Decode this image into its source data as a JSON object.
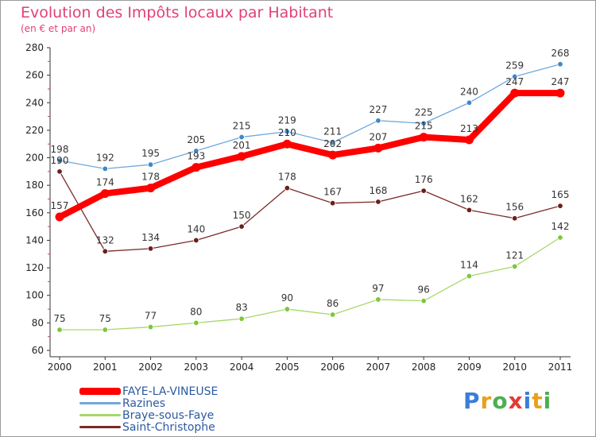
{
  "title": "Evolution des Impôts locaux par Habitant",
  "subtitle": "(en € et par an)",
  "chart_data": {
    "type": "line",
    "x": [
      "2000",
      "2001",
      "2002",
      "2003",
      "2004",
      "2005",
      "2006",
      "2007",
      "2008",
      "2009",
      "2010",
      "2011"
    ],
    "ylim": [
      60,
      280
    ],
    "yticks": [
      60,
      80,
      100,
      120,
      140,
      160,
      180,
      200,
      220,
      240,
      260,
      280
    ],
    "grid": false,
    "legend_position": "bottom-left",
    "series": [
      {
        "name": "Razines",
        "color": "#6fa8dc",
        "marker": "#3f88c8",
        "width": 1.3,
        "values": [
          198,
          192,
          195,
          205,
          215,
          219,
          211,
          227,
          225,
          240,
          259,
          268
        ]
      },
      {
        "name": "Braye-sous-Faye",
        "color": "#a6d96a",
        "marker": "#7ec63a",
        "width": 1.3,
        "values": [
          75,
          75,
          77,
          80,
          83,
          90,
          86,
          97,
          96,
          114,
          121,
          142
        ]
      },
      {
        "name": "Saint-Christophe",
        "color": "#7a2a2a",
        "marker": "#6b1e1e",
        "width": 1.3,
        "values": [
          190,
          132,
          134,
          140,
          150,
          178,
          167,
          168,
          176,
          162,
          156,
          165
        ]
      },
      {
        "name": "FAYE-LA-VINEUSE",
        "color": "#ff0000",
        "marker": "#ff0000",
        "width": 8,
        "values": [
          157,
          174,
          178,
          193,
          201,
          210,
          202,
          207,
          215,
          213,
          247,
          247
        ]
      }
    ]
  },
  "legend": [
    {
      "name": "FAYE-LA-VINEUSE",
      "color": "#ff0000"
    },
    {
      "name": "Razines",
      "color": "#6fa8dc"
    },
    {
      "name": "Braye-sous-Faye",
      "color": "#a6d96a"
    },
    {
      "name": "Saint-Christophe",
      "color": "#7a2a2a"
    }
  ],
  "logo": {
    "text": "Proxiti",
    "letters": [
      {
        "ch": "P",
        "color": "#3b7dd8"
      },
      {
        "ch": "r",
        "color": "#e8a020"
      },
      {
        "ch": "o",
        "color": "#4caf50"
      },
      {
        "ch": "x",
        "color": "#e53935"
      },
      {
        "ch": "i",
        "color": "#3b7dd8"
      },
      {
        "ch": "t",
        "color": "#e8a020"
      },
      {
        "ch": "i",
        "color": "#4caf50"
      }
    ]
  }
}
